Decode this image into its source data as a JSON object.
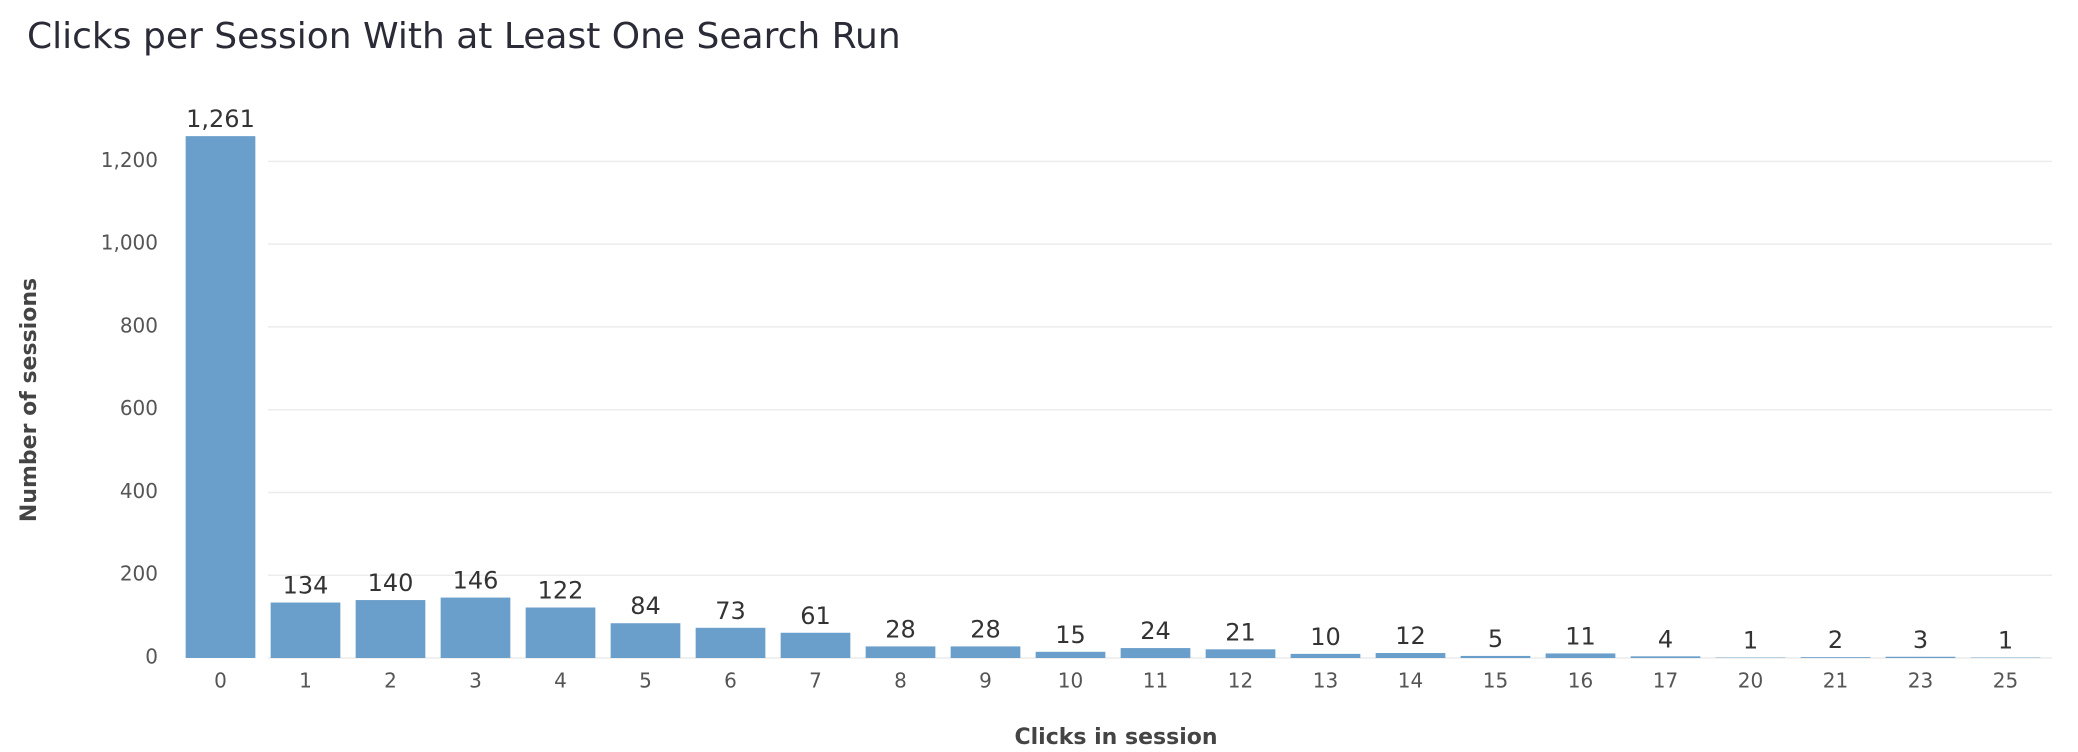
{
  "chart_data": {
    "type": "bar",
    "title": "Clicks per Session With at Least One Search Run",
    "ylabel": "Number of sessions",
    "xlabel": "Clicks in session",
    "categories": [
      "0",
      "1",
      "2",
      "3",
      "4",
      "5",
      "6",
      "7",
      "8",
      "9",
      "10",
      "11",
      "12",
      "13",
      "14",
      "15",
      "16",
      "17",
      "20",
      "21",
      "23",
      "25"
    ],
    "values": [
      1261,
      134,
      140,
      146,
      122,
      84,
      73,
      61,
      28,
      28,
      15,
      24,
      21,
      10,
      12,
      5,
      11,
      4,
      1,
      2,
      3,
      1
    ],
    "value_labels": [
      "1,261",
      "134",
      "140",
      "146",
      "122",
      "84",
      "73",
      "61",
      "28",
      "28",
      "15",
      "24",
      "21",
      "10",
      "12",
      "5",
      "11",
      "4",
      "1",
      "2",
      "3",
      "1"
    ],
    "color": "#6a9ecb",
    "ylim": [
      0,
      1300
    ],
    "yticks": [
      0,
      200,
      400,
      600,
      800,
      {
        "value": 1000,
        "label": "1,000"
      },
      {
        "value": 1200,
        "label": "1,200"
      }
    ],
    "grid": true
  }
}
